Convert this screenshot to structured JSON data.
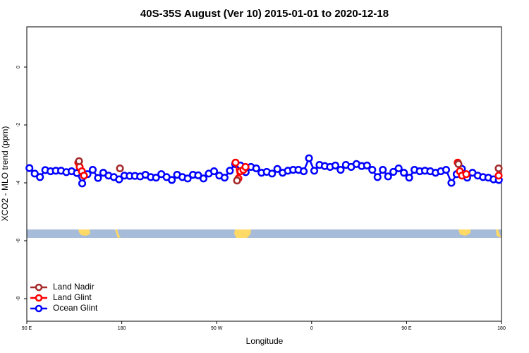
{
  "chart_data": {
    "type": "line",
    "title": "40S-35S August (Ver 10)   2015-01-01 to 2020-12-18",
    "x_label": "Longitude",
    "y_label": "XCO2 - MLO trend (ppm)",
    "xlim": [
      90,
      540
    ],
    "ylim": [
      -8.78,
      1.39
    ],
    "xticks": [
      {
        "value": 90,
        "label": "90 E"
      },
      {
        "value": 180,
        "label": "180"
      },
      {
        "value": 270,
        "label": "90 W"
      },
      {
        "value": 360,
        "label": "0"
      },
      {
        "value": 450,
        "label": "90 E"
      },
      {
        "value": 540,
        "label": "180"
      }
    ],
    "yticks": [
      0,
      -2,
      -4,
      -6,
      -8
    ],
    "legend": "bottom-left",
    "series": [
      {
        "name": "Land Nadir",
        "color": "#a52a2a",
        "x": [
          139.5,
          178.3,
          289.3,
          499.2,
          537.3
        ],
        "values": [
          -3.25,
          -3.5,
          -3.92,
          -3.35,
          -3.5
        ]
      },
      {
        "name": "Land Glint",
        "color": "#ff0000",
        "x": [
          138.8,
          140.1,
          142.2,
          144.2,
          287.9,
          290.6,
          292.6,
          295.3,
          297.3,
          498.5,
          500.5,
          502.5,
          506.6,
          537.3
        ],
        "values": [
          -3.3,
          -3.45,
          -3.6,
          -3.75,
          -3.3,
          -3.85,
          -3.6,
          -3.55,
          -3.45,
          -3.3,
          -3.6,
          -3.75,
          -3.7,
          -3.75
        ]
      },
      {
        "name": "Ocean Glint",
        "color": "#0000ff",
        "x": [
          92.5,
          97.5,
          102.5,
          107.5,
          112.5,
          117.5,
          122.5,
          127.5,
          132.5,
          137.5,
          142.5,
          147.5,
          152.5,
          157.5,
          162.5,
          167.5,
          172.5,
          177.5,
          182.5,
          187.5,
          192.5,
          197.5,
          202.5,
          207.5,
          212.5,
          217.5,
          222.5,
          227.5,
          232.5,
          237.5,
          242.5,
          247.5,
          252.5,
          257.5,
          262.5,
          267.5,
          272.5,
          277.5,
          282.5,
          287.5,
          292.5,
          297.5,
          302.5,
          307.5,
          312.5,
          317.5,
          322.5,
          327.5,
          332.5,
          337.5,
          342.5,
          347.5,
          352.5,
          357.5,
          362.5,
          367.5,
          372.5,
          377.5,
          382.5,
          387.5,
          392.5,
          397.5,
          402.5,
          407.5,
          412.5,
          417.5,
          422.5,
          427.5,
          432.5,
          437.5,
          442.5,
          447.5,
          452.5,
          457.5,
          462.5,
          467.5,
          472.5,
          477.5,
          482.5,
          487.5,
          492.5,
          497.5,
          502.5,
          507.5,
          512.5,
          517.5,
          522.5,
          527.5,
          532.5,
          537.5
        ],
        "values": [
          -3.49,
          -3.68,
          -3.8,
          -3.56,
          -3.6,
          -3.58,
          -3.58,
          -3.63,
          -3.6,
          -3.66,
          -4.02,
          -3.7,
          -3.55,
          -3.83,
          -3.65,
          -3.75,
          -3.8,
          -3.88,
          -3.75,
          -3.76,
          -3.76,
          -3.78,
          -3.72,
          -3.8,
          -3.82,
          -3.7,
          -3.8,
          -3.9,
          -3.72,
          -3.8,
          -3.85,
          -3.72,
          -3.74,
          -3.85,
          -3.68,
          -3.6,
          -3.75,
          -3.82,
          -3.58,
          -3.35,
          -3.4,
          -3.63,
          -3.45,
          -3.5,
          -3.65,
          -3.62,
          -3.68,
          -3.52,
          -3.65,
          -3.58,
          -3.55,
          -3.55,
          -3.6,
          -3.15,
          -3.58,
          -3.38,
          -3.42,
          -3.45,
          -3.4,
          -3.55,
          -3.38,
          -3.45,
          -3.35,
          -3.42,
          -3.4,
          -3.55,
          -3.8,
          -3.55,
          -3.78,
          -3.62,
          -3.5,
          -3.65,
          -3.82,
          -3.55,
          -3.6,
          -3.58,
          -3.6,
          -3.65,
          -3.6,
          -3.55,
          -4.0,
          -3.7,
          -3.52,
          -3.82,
          -3.65,
          -3.75,
          -3.8,
          -3.82,
          -3.88,
          -3.9
        ]
      }
    ]
  }
}
